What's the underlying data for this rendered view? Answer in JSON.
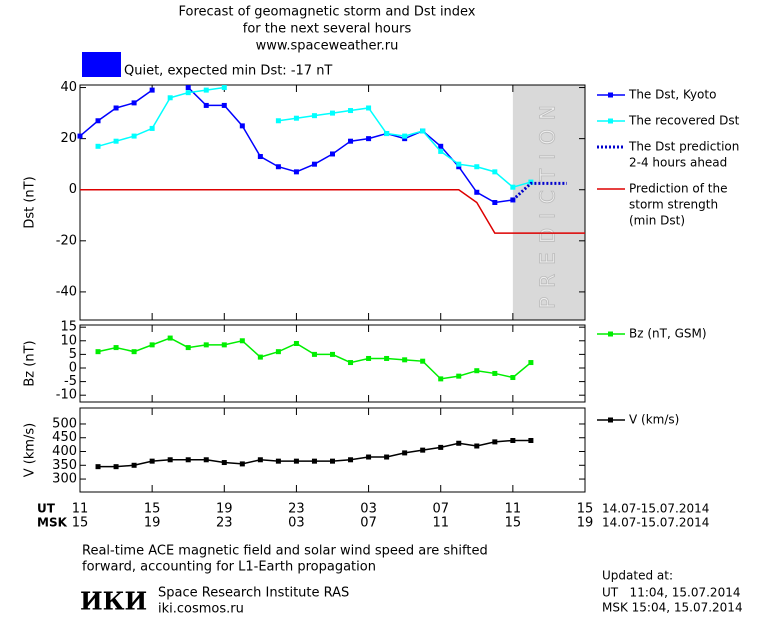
{
  "chart_data": [
    {
      "type": "line",
      "title": [
        "Forecast of geomagnetic storm and Dst index",
        "for the next several hours",
        "www.spaceweather.ru"
      ],
      "status": {
        "text": "Quiet, expected min Dst: -17 nT",
        "color": "#0000ff"
      },
      "ylabel": "Dst (nT)",
      "ylim": [
        -51,
        41
      ],
      "yticks": [
        -40,
        -20,
        0,
        20,
        40
      ],
      "shaded_region": {
        "x": [
          24,
          28
        ],
        "label": "PREDICTION"
      },
      "series": [
        {
          "name": [
            "The Dst, Kyoto"
          ],
          "color": "#0000ff",
          "marker": true,
          "dash": false,
          "x": [
            0,
            1,
            2,
            3,
            4,
            5,
            6,
            7,
            8,
            9,
            10,
            11,
            12,
            13,
            14,
            15,
            16,
            17,
            18,
            19,
            20,
            21,
            22,
            23,
            24
          ],
          "values": [
            21,
            27,
            32,
            34,
            39,
            null,
            40,
            33,
            33,
            25,
            13,
            9,
            7,
            10,
            14,
            19,
            20,
            22,
            20,
            23,
            17,
            9,
            -1,
            -5,
            -4
          ]
        },
        {
          "name": [
            "The recovered Dst"
          ],
          "color": "#00ffff",
          "marker": true,
          "dash": false,
          "x": [
            1,
            2,
            3,
            4,
            5,
            6,
            7,
            8,
            9,
            10,
            11,
            12,
            13,
            14,
            15,
            16,
            17,
            18,
            19,
            20,
            21,
            22,
            23,
            24,
            25
          ],
          "values": [
            17,
            19,
            21,
            24,
            36,
            38,
            39,
            40,
            null,
            null,
            27,
            28,
            29,
            30,
            31,
            32,
            22,
            21,
            23,
            15,
            10,
            9,
            7,
            1,
            3
          ]
        },
        {
          "name": [
            "The Dst prediction",
            "2-4 hours ahead"
          ],
          "color": "#0000cc",
          "marker": false,
          "dash": true,
          "x": [
            24,
            25,
            26,
            27
          ],
          "values": [
            -4,
            2.5,
            2.5,
            2.5
          ]
        },
        {
          "name": [
            "Prediction of the",
            "storm strength",
            "(min Dst)"
          ],
          "color": "#dd0000",
          "marker": false,
          "dash": false,
          "x": [
            0,
            21,
            22,
            23,
            28
          ],
          "values": [
            0,
            0,
            -5,
            -17,
            -17
          ]
        }
      ]
    },
    {
      "type": "line",
      "ylabel": "Bz (nT)",
      "ylim": [
        -12.5,
        15.8
      ],
      "yticks": [
        -10,
        -5,
        0,
        5,
        10,
        15
      ],
      "series": [
        {
          "name": [
            "Bz (nT, GSM)"
          ],
          "color": "#00ee00",
          "marker": true,
          "dash": false,
          "x": [
            1,
            2,
            3,
            4,
            5,
            6,
            7,
            8,
            9,
            10,
            11,
            12,
            13,
            14,
            15,
            16,
            17,
            18,
            19,
            20,
            21,
            22,
            23,
            24,
            25
          ],
          "values": [
            6,
            7.5,
            6,
            8.5,
            11,
            7.5,
            8.5,
            8.5,
            10,
            4,
            6,
            9,
            5,
            5,
            2,
            3.5,
            3.5,
            3,
            2.5,
            -4,
            -3,
            -1,
            -2,
            -3.5,
            2
          ]
        }
      ]
    },
    {
      "type": "line",
      "ylabel": "V (km/s)",
      "ylim": [
        253,
        558
      ],
      "yticks": [
        300,
        350,
        400,
        450,
        500
      ],
      "xlim": [
        0,
        28
      ],
      "xticks": [
        {
          "value": 0,
          "label": "11"
        },
        {
          "value": 4,
          "label": "15"
        },
        {
          "value": 8,
          "label": "19"
        },
        {
          "value": 12,
          "label": "23"
        },
        {
          "value": 16,
          "label": "03"
        },
        {
          "value": 20,
          "label": "07"
        },
        {
          "value": 24,
          "label": "11"
        },
        {
          "value": 28,
          "label": "15"
        }
      ],
      "xticks_msk": [
        "15",
        "19",
        "23",
        "03",
        "07",
        "11",
        "15",
        "19"
      ],
      "x_row_labels": [
        "UT",
        "MSK"
      ],
      "date_range": "14.07-15.07.2014",
      "series": [
        {
          "name": [
            "V (km/s)"
          ],
          "color": "#000000",
          "marker": true,
          "dash": false,
          "x": [
            1,
            2,
            3,
            4,
            5,
            6,
            7,
            8,
            9,
            10,
            11,
            12,
            13,
            14,
            15,
            16,
            17,
            18,
            19,
            20,
            21,
            22,
            23,
            24,
            25
          ],
          "values": [
            345,
            345,
            350,
            365,
            370,
            370,
            370,
            360,
            355,
            370,
            365,
            365,
            365,
            365,
            370,
            380,
            380,
            395,
            405,
            415,
            430,
            420,
            435,
            440,
            440
          ]
        }
      ]
    }
  ],
  "footer": {
    "note": [
      "Real-time ACE magnetic field and solar wind speed are shifted",
      "forward, accounting for L1-Earth propagation"
    ],
    "logo": "ИКИ",
    "institute": "Space Research Institute RAS",
    "site": "iki.cosmos.ru",
    "updated": [
      "Updated at:",
      "UT   11:04, 15.07.2014",
      "MSK 15:04, 15.07.2014"
    ]
  }
}
